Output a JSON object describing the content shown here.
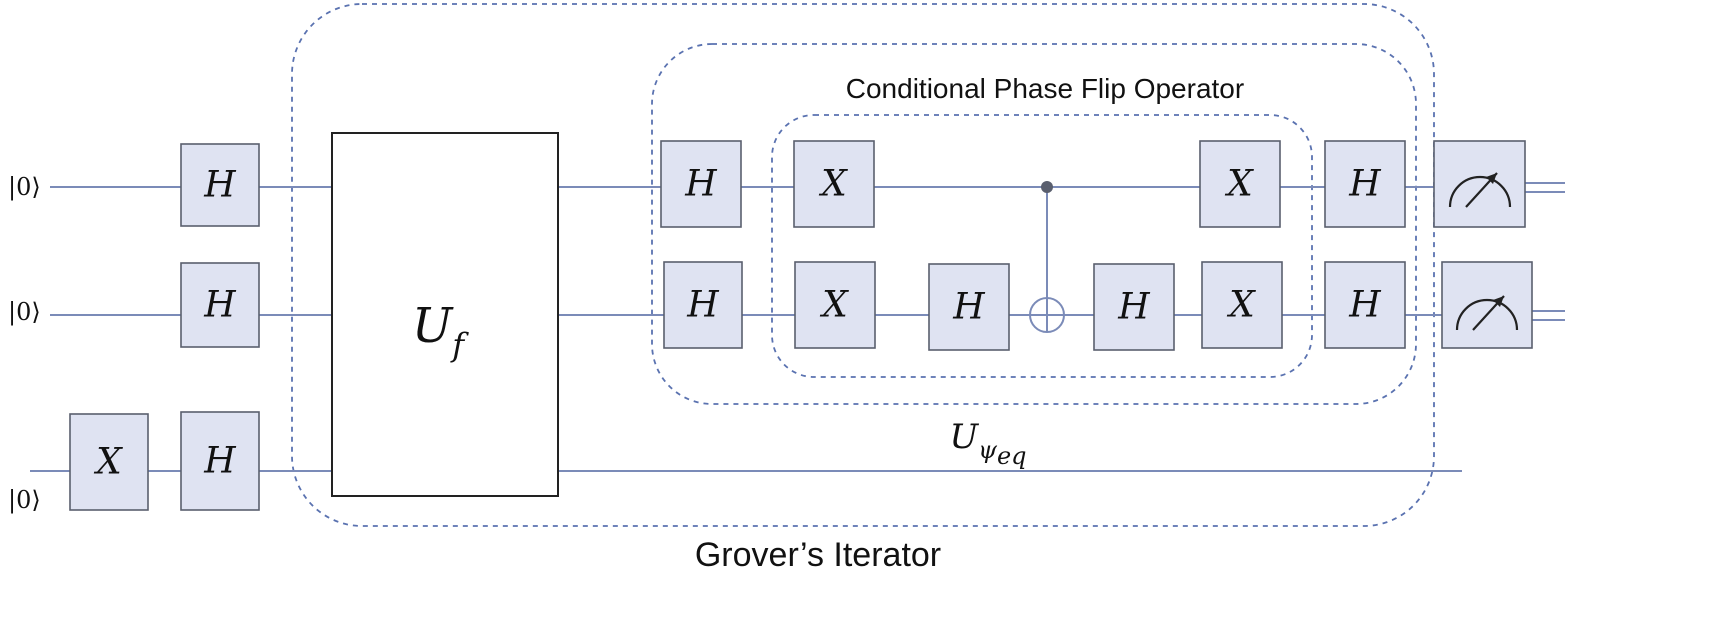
{
  "inputs": {
    "qubit1": "|0⟩",
    "qubit2": "|0⟩",
    "qubit3": "|0⟩"
  },
  "gates": {
    "h": "H",
    "x": "X"
  },
  "oracle": {
    "main": "U",
    "sub": "f"
  },
  "diffusion": {
    "main": "U",
    "sub_psi": "ψ",
    "sub_eq": "eq"
  },
  "labels": {
    "conditional_phase_flip": "Conditional Phase Flip Operator",
    "grover_iterator": "Grover’s Iterator"
  },
  "colors": {
    "wire": "#7b8bb8",
    "gate_fill": "#dfe3f2",
    "dashed_border": "#5a72b0"
  }
}
